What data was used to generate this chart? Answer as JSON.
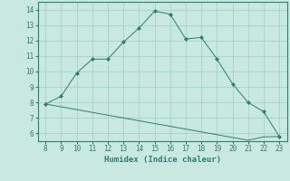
{
  "x": [
    8,
    9,
    10,
    11,
    12,
    13,
    14,
    15,
    16,
    17,
    18,
    19,
    20,
    21,
    22,
    23
  ],
  "y_main": [
    7.9,
    8.4,
    9.9,
    10.8,
    10.8,
    11.9,
    12.8,
    13.9,
    13.7,
    12.1,
    12.2,
    10.8,
    9.2,
    8.0,
    7.4,
    5.8
  ],
  "y_lower": [
    7.9,
    7.72,
    7.54,
    7.36,
    7.18,
    7.0,
    6.82,
    6.64,
    6.46,
    6.28,
    6.1,
    5.92,
    5.74,
    5.56,
    5.78,
    5.8
  ],
  "line_color": "#2e7d6e",
  "bg_color": "#c8e8e0",
  "grid_color": "#9ecfca",
  "xlabel": "Humidex (Indice chaleur)",
  "xlim": [
    7.5,
    23.5
  ],
  "ylim": [
    5.5,
    14.5
  ],
  "xticks": [
    8,
    9,
    10,
    11,
    12,
    13,
    14,
    15,
    16,
    17,
    18,
    19,
    20,
    21,
    22,
    23
  ],
  "yticks": [
    6,
    7,
    8,
    9,
    10,
    11,
    12,
    13,
    14
  ]
}
